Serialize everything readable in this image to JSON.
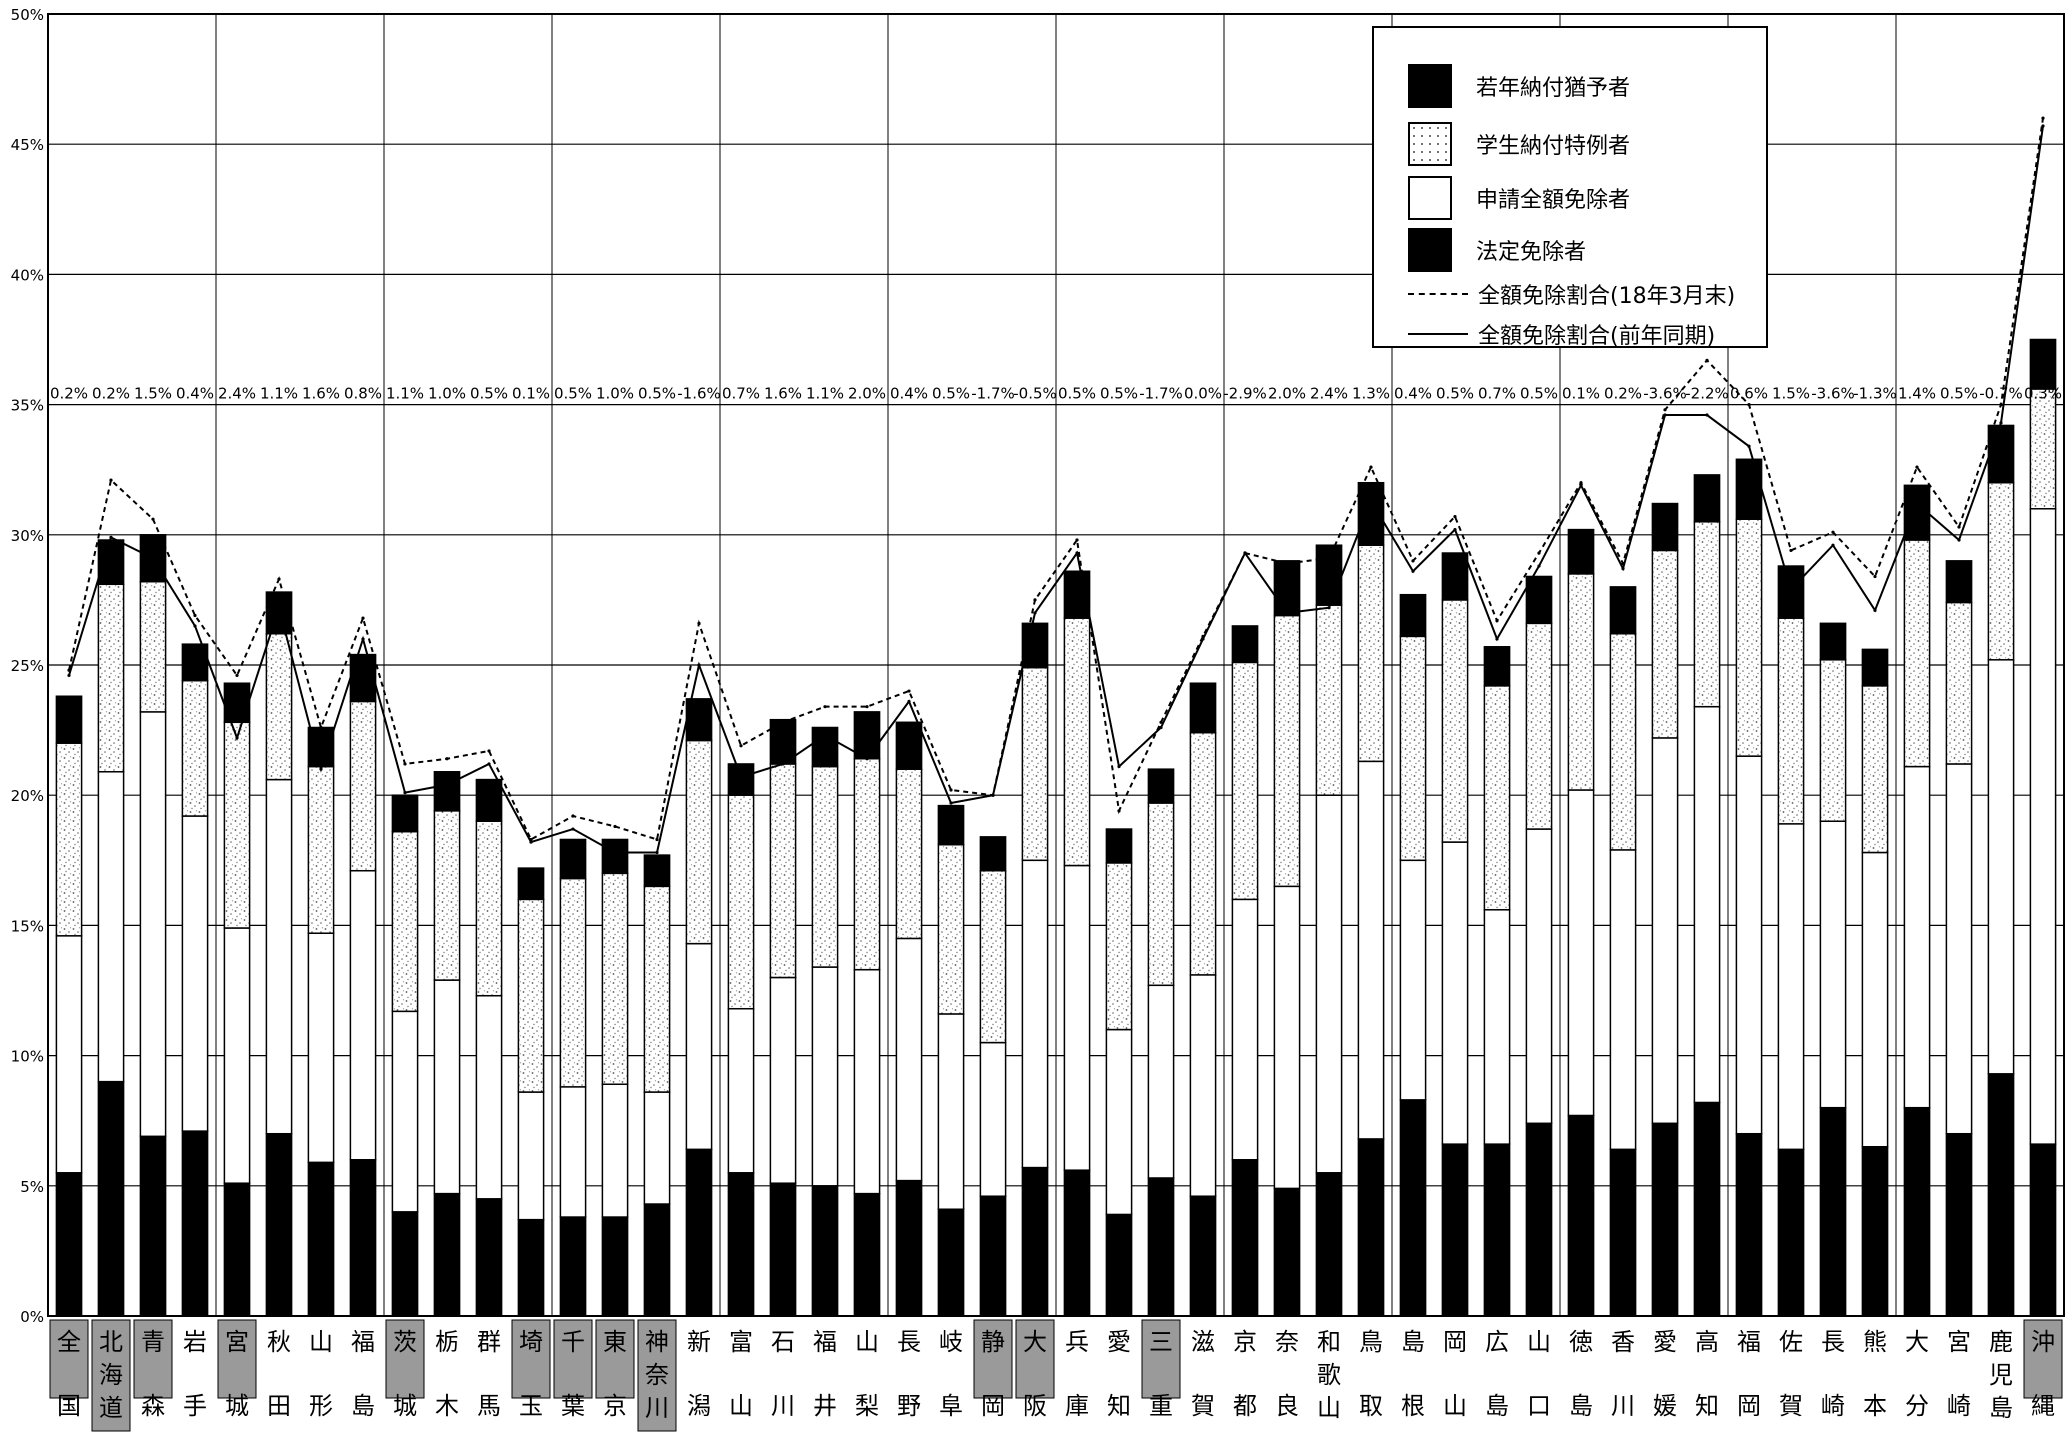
{
  "chart_data": {
    "type": "bar",
    "stacked": true,
    "ylim": [
      0,
      50
    ],
    "yticks": [
      "0%",
      "5%",
      "10%",
      "15%",
      "20%",
      "25%",
      "30%",
      "35%",
      "40%",
      "45%",
      "50%"
    ],
    "grid": true,
    "legend_position": "top-right",
    "categories": [
      "全国",
      "北海道",
      "青森",
      "岩手",
      "宮城",
      "秋田",
      "山形",
      "福島",
      "茨城",
      "栃木",
      "群馬",
      "埼玉",
      "千葉",
      "東京",
      "神奈川",
      "新潟",
      "富山",
      "石川",
      "福井",
      "山梨",
      "長野",
      "岐阜",
      "静岡",
      "大阪",
      "兵庫",
      "愛知",
      "三重",
      "滋賀",
      "京都",
      "奈良",
      "和歌山",
      "鳥取",
      "島根",
      "岡山",
      "広島",
      "山口",
      "徳島",
      "香川",
      "愛媛",
      "高知",
      "福岡",
      "佐賀",
      "長崎",
      "熊本",
      "大分",
      "宮崎",
      "鹿児島",
      "沖縄"
    ],
    "highlighted_categories": [
      "全国",
      "北海道",
      "青森",
      "宮城",
      "茨城",
      "埼玉",
      "千葉",
      "東京",
      "神奈川",
      "静岡",
      "大阪",
      "三重",
      "沖縄"
    ],
    "series": [
      {
        "name": "法定免除者",
        "values": [
          5.5,
          9.0,
          6.9,
          7.1,
          5.1,
          7.0,
          5.9,
          6.0,
          4.0,
          4.7,
          4.5,
          3.7,
          3.8,
          3.8,
          4.3,
          6.4,
          5.5,
          5.1,
          5.0,
          4.7,
          5.2,
          4.1,
          4.6,
          5.7,
          5.6,
          3.9,
          5.3,
          4.6,
          6.0,
          4.9,
          5.5,
          6.8,
          8.3,
          6.6,
          6.6,
          7.4,
          7.7,
          6.4,
          7.4,
          8.2,
          7.0,
          6.4,
          8.0,
          6.5,
          8.0,
          7.0,
          9.3,
          6.6
        ]
      },
      {
        "name": "申請全額免除者",
        "values": [
          9.1,
          11.9,
          16.3,
          12.1,
          9.8,
          13.6,
          8.8,
          11.1,
          7.7,
          8.2,
          7.8,
          4.9,
          5.0,
          5.1,
          4.3,
          7.9,
          6.3,
          7.9,
          8.4,
          8.6,
          9.3,
          7.5,
          5.9,
          11.8,
          11.7,
          7.1,
          7.4,
          8.5,
          10.0,
          11.6,
          14.5,
          14.5,
          9.2,
          11.6,
          9.0,
          11.3,
          12.5,
          11.5,
          14.8,
          15.2,
          14.5,
          12.5,
          11.0,
          11.3,
          13.1,
          14.2,
          15.9,
          24.4
        ]
      },
      {
        "name": "学生納付特例者",
        "values": [
          7.4,
          7.2,
          5.0,
          5.2,
          7.9,
          5.6,
          6.4,
          6.5,
          6.9,
          6.5,
          6.7,
          7.4,
          8.0,
          8.1,
          7.9,
          7.8,
          8.2,
          8.2,
          7.7,
          8.1,
          6.5,
          6.5,
          6.6,
          7.4,
          9.5,
          6.4,
          7.0,
          9.3,
          9.1,
          10.4,
          7.3,
          8.3,
          8.6,
          9.3,
          8.6,
          7.9,
          8.3,
          8.3,
          7.2,
          7.1,
          9.1,
          7.9,
          6.2,
          6.4,
          8.7,
          6.2,
          6.8,
          4.6
        ]
      },
      {
        "name": "若年納付猶予者",
        "values": [
          1.8,
          1.7,
          1.8,
          1.4,
          1.5,
          1.6,
          1.5,
          1.8,
          1.4,
          1.5,
          1.6,
          1.2,
          1.5,
          1.3,
          1.2,
          1.6,
          1.2,
          1.7,
          1.5,
          1.8,
          1.8,
          1.5,
          1.3,
          1.7,
          1.8,
          1.3,
          1.3,
          1.9,
          1.4,
          2.1,
          2.3,
          2.4,
          1.6,
          1.8,
          1.5,
          1.8,
          1.7,
          1.8,
          1.8,
          1.8,
          2.3,
          2.0,
          1.4,
          1.4,
          2.1,
          1.6,
          2.2,
          1.9
        ]
      },
      {
        "name": "全額免除割合(18年3月末)",
        "type": "line",
        "style": "dashed",
        "values": [
          24.8,
          32.1,
          30.6,
          26.9,
          24.6,
          28.3,
          22.6,
          26.8,
          21.2,
          21.4,
          21.7,
          18.3,
          19.2,
          18.8,
          18.3,
          26.6,
          21.9,
          22.8,
          23.4,
          23.4,
          24.0,
          20.2,
          20.0,
          27.5,
          29.8,
          19.4,
          22.8,
          26.1,
          29.3,
          28.9,
          29.1,
          32.6,
          29.0,
          30.7,
          26.7,
          29.3,
          32.0,
          28.9,
          34.8,
          36.7,
          35.0,
          29.4,
          30.1,
          28.4,
          32.6,
          30.3,
          35.0,
          46.0
        ]
      },
      {
        "name": "全額免除割合(前年同期)",
        "type": "line",
        "style": "solid",
        "values": [
          24.6,
          29.9,
          29.1,
          26.5,
          22.2,
          27.2,
          21.0,
          26.0,
          20.1,
          20.4,
          21.2,
          18.2,
          18.7,
          17.8,
          17.8,
          25.0,
          20.7,
          21.2,
          22.3,
          21.4,
          23.6,
          19.7,
          20.0,
          27.0,
          29.3,
          21.1,
          22.6,
          26.0,
          29.3,
          27.0,
          27.2,
          31.3,
          28.6,
          30.2,
          26.0,
          28.8,
          31.9,
          28.7,
          34.6,
          34.6,
          33.4,
          27.9,
          29.6,
          27.1,
          31.2,
          29.8,
          34.3,
          45.7
        ]
      }
    ],
    "data_labels": [
      "0.2%",
      "0.2%",
      "1.5%",
      "0.4%",
      "2.4%",
      "1.1%",
      "1.6%",
      "0.8%",
      "1.1%",
      "1.0%",
      "0.5%",
      "0.1%",
      "0.5%",
      "1.0%",
      "0.5%",
      "-1.6%",
      "0.7%",
      "1.6%",
      "1.1%",
      "2.0%",
      "0.4%",
      "0.5%",
      "-1.7%",
      "-0.5%",
      "0.5%",
      "0.5%",
      "-1.7%",
      "0.0%",
      "-2.9%",
      "2.0%",
      "2.4%",
      "1.3%",
      "0.4%",
      "0.5%",
      "0.7%",
      "0.5%",
      "0.1%",
      "0.2%",
      "-3.6%",
      "-2.2%",
      "0.6%",
      "1.5%",
      "-3.6%",
      "-1.3%",
      "1.4%",
      "0.5%",
      "-0.7%",
      "0.3%"
    ],
    "data_label_level": 35
  }
}
